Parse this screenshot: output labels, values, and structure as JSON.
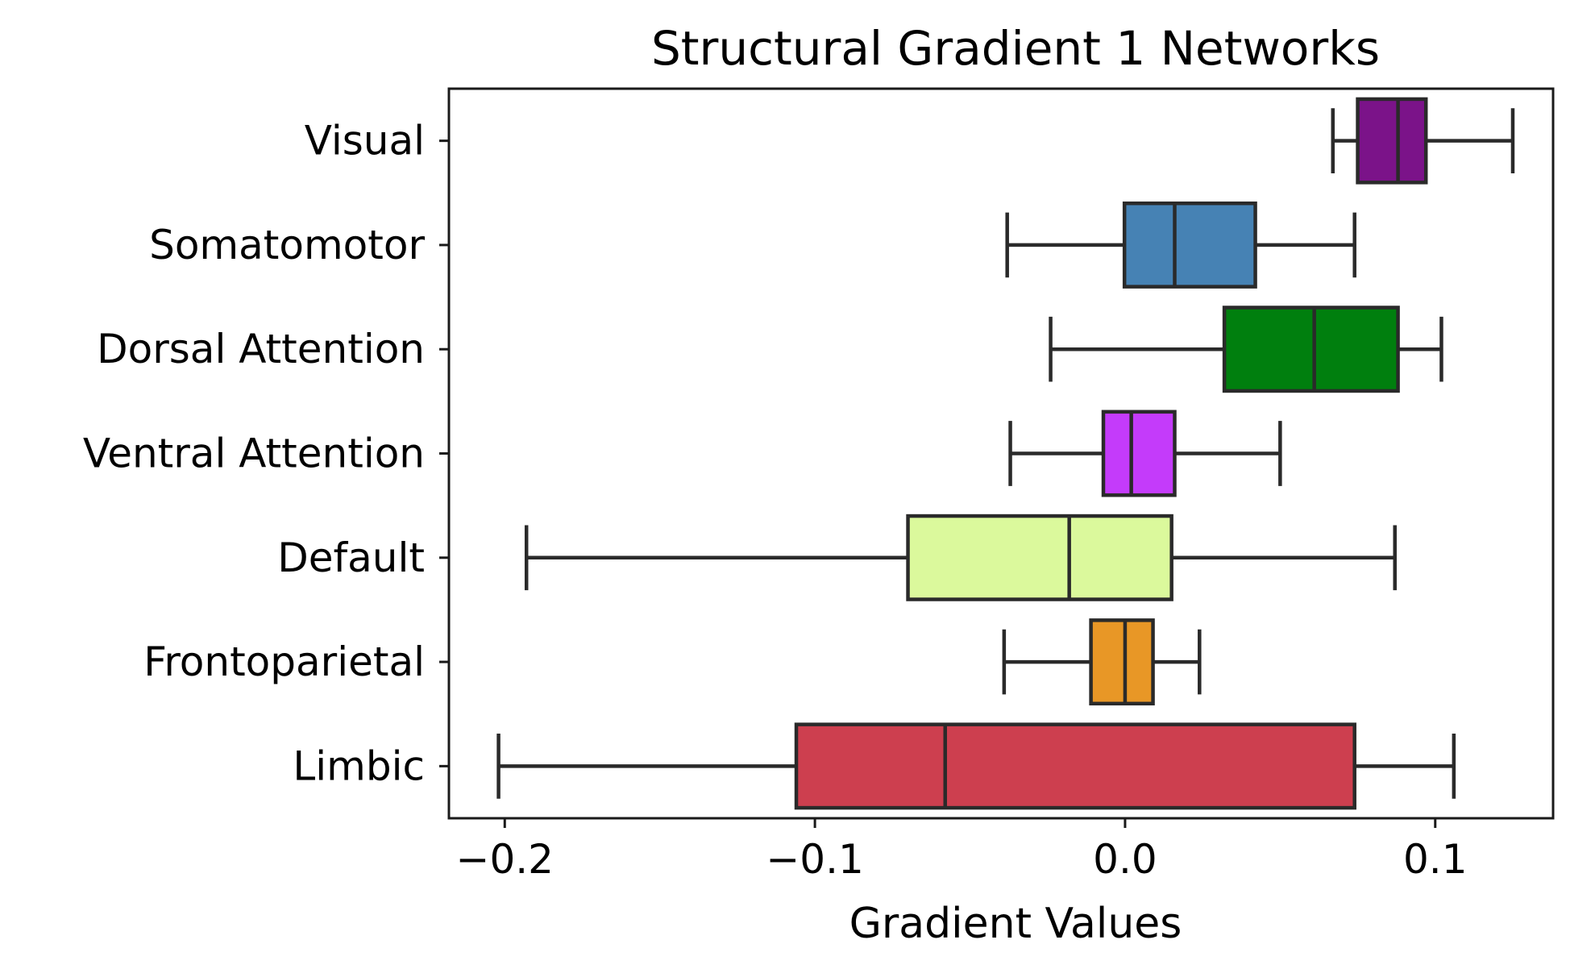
{
  "chart_data": {
    "type": "box",
    "orientation": "horizontal",
    "title": "Structural Gradient 1 Networks",
    "xlabel": "Gradient Values",
    "ylabel": "",
    "xlim": [
      -0.218,
      0.138
    ],
    "xticks": [
      -0.2,
      -0.1,
      0.0,
      0.1
    ],
    "xtick_labels": [
      "−0.2",
      "−0.1",
      "0.0",
      "0.1"
    ],
    "grid": false,
    "categories": [
      "Visual",
      "Somatomotor",
      "Dorsal Attention",
      "Ventral Attention",
      "Default",
      "Frontoparietal",
      "Limbic"
    ],
    "boxes": [
      {
        "label": "Visual",
        "whisker_low": 0.067,
        "q1": 0.075,
        "median": 0.088,
        "q3": 0.097,
        "whisker_high": 0.125,
        "color": "#7b1389"
      },
      {
        "label": "Somatomotor",
        "whisker_low": -0.038,
        "q1": -0.0002,
        "median": 0.016,
        "q3": 0.042,
        "whisker_high": 0.074,
        "color": "#4682b4"
      },
      {
        "label": "Dorsal Attention",
        "whisker_low": -0.024,
        "q1": 0.032,
        "median": 0.061,
        "q3": 0.088,
        "whisker_high": 0.102,
        "color": "#007f0e"
      },
      {
        "label": "Ventral Attention",
        "whisker_low": -0.037,
        "q1": -0.007,
        "median": 0.002,
        "q3": 0.016,
        "whisker_high": 0.05,
        "color": "#c43bfa"
      },
      {
        "label": "Default",
        "whisker_low": -0.193,
        "q1": -0.07,
        "median": -0.018,
        "q3": 0.015,
        "whisker_high": 0.087,
        "color": "#dbf99c"
      },
      {
        "label": "Frontoparietal",
        "whisker_low": -0.039,
        "q1": -0.011,
        "median": 0.0,
        "q3": 0.009,
        "whisker_high": 0.024,
        "color": "#e89726"
      },
      {
        "label": "Limbic",
        "whisker_low": -0.202,
        "q1": -0.106,
        "median": -0.058,
        "q3": 0.074,
        "whisker_high": 0.106,
        "color": "#cd3f4f"
      }
    ]
  }
}
